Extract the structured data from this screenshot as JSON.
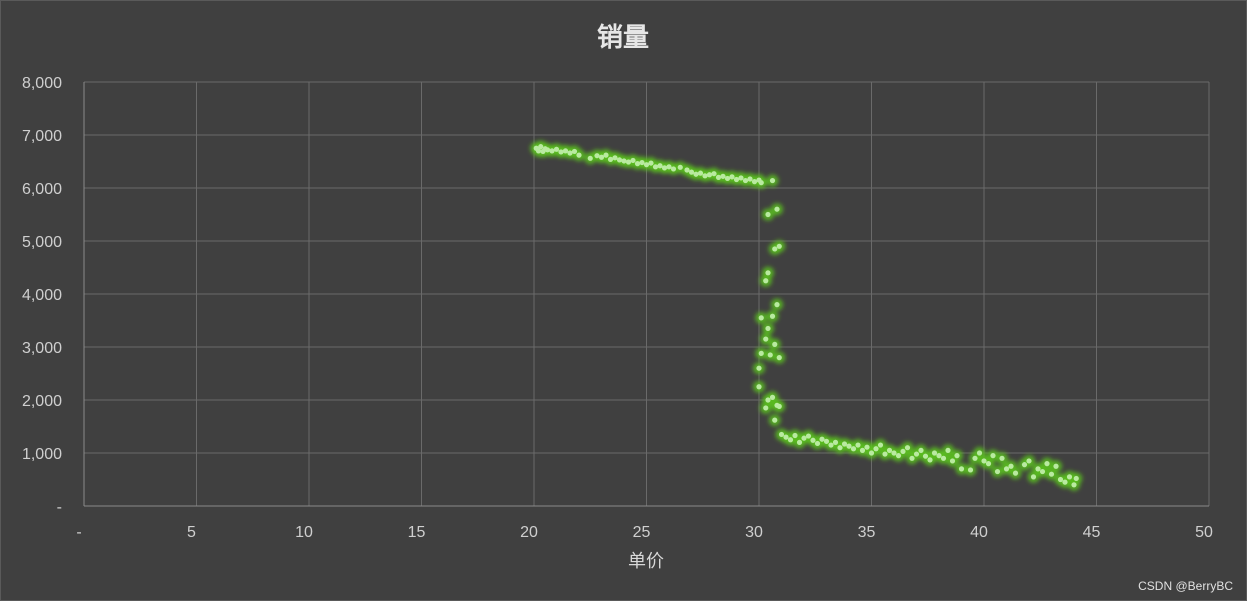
{
  "chart_data": {
    "type": "scatter",
    "title": "销量",
    "xlabel": "单价",
    "ylabel": "",
    "xlim": [
      0,
      50
    ],
    "ylim": [
      0,
      8000
    ],
    "x_ticks": [
      0,
      5,
      10,
      15,
      20,
      25,
      30,
      35,
      40,
      45,
      50
    ],
    "x_tick_labels": [
      "-",
      "5",
      "10",
      "15",
      "20",
      "25",
      "30",
      "35",
      "40",
      "45",
      "50"
    ],
    "y_ticks": [
      0,
      1000,
      2000,
      3000,
      4000,
      5000,
      6000,
      7000,
      8000
    ],
    "y_tick_labels": [
      "-",
      "1,000",
      "2,000",
      "3,000",
      "4,000",
      "5,000",
      "6,000",
      "7,000",
      "8,000"
    ],
    "grid": true,
    "legend": "none",
    "colors": {
      "marker_glow": "#5bbf1e",
      "marker_core": "#b9eaa0",
      "grid": "#6a6a6a",
      "axis": "#8a8a8a",
      "background": "#404040"
    },
    "series": [
      {
        "points": [
          [
            20.1,
            6750
          ],
          [
            20.2,
            6700
          ],
          [
            20.3,
            6780
          ],
          [
            20.4,
            6690
          ],
          [
            20.5,
            6740
          ],
          [
            20.6,
            6720
          ],
          [
            20.8,
            6700
          ],
          [
            21.0,
            6730
          ],
          [
            21.2,
            6680
          ],
          [
            21.4,
            6700
          ],
          [
            21.6,
            6660
          ],
          [
            21.8,
            6690
          ],
          [
            22.0,
            6620
          ],
          [
            22.5,
            6560
          ],
          [
            22.8,
            6610
          ],
          [
            23.0,
            6580
          ],
          [
            23.2,
            6620
          ],
          [
            23.4,
            6540
          ],
          [
            23.6,
            6570
          ],
          [
            23.8,
            6530
          ],
          [
            24.0,
            6510
          ],
          [
            24.2,
            6490
          ],
          [
            24.4,
            6520
          ],
          [
            24.6,
            6460
          ],
          [
            24.8,
            6480
          ],
          [
            25.0,
            6440
          ],
          [
            25.2,
            6470
          ],
          [
            25.4,
            6400
          ],
          [
            25.6,
            6420
          ],
          [
            25.8,
            6380
          ],
          [
            26.0,
            6400
          ],
          [
            26.2,
            6360
          ],
          [
            26.5,
            6390
          ],
          [
            26.8,
            6340
          ],
          [
            27.0,
            6300
          ],
          [
            27.2,
            6260
          ],
          [
            27.4,
            6280
          ],
          [
            27.6,
            6230
          ],
          [
            27.8,
            6250
          ],
          [
            28.0,
            6270
          ],
          [
            28.2,
            6200
          ],
          [
            28.4,
            6220
          ],
          [
            28.6,
            6180
          ],
          [
            28.8,
            6210
          ],
          [
            29.0,
            6160
          ],
          [
            29.2,
            6190
          ],
          [
            29.4,
            6140
          ],
          [
            29.6,
            6170
          ],
          [
            29.8,
            6120
          ],
          [
            30.0,
            6150
          ],
          [
            30.1,
            6100
          ],
          [
            30.6,
            6140
          ],
          [
            30.4,
            5500
          ],
          [
            30.8,
            5600
          ],
          [
            30.7,
            4850
          ],
          [
            30.9,
            4900
          ],
          [
            30.4,
            4400
          ],
          [
            30.3,
            4250
          ],
          [
            30.8,
            3800
          ],
          [
            30.1,
            3550
          ],
          [
            30.6,
            3580
          ],
          [
            30.4,
            3350
          ],
          [
            30.3,
            3150
          ],
          [
            30.7,
            3050
          ],
          [
            30.1,
            2880
          ],
          [
            30.5,
            2850
          ],
          [
            30.9,
            2800
          ],
          [
            30.0,
            2600
          ],
          [
            30.0,
            2250
          ],
          [
            30.6,
            2050
          ],
          [
            30.4,
            2000
          ],
          [
            30.8,
            1900
          ],
          [
            30.9,
            1880
          ],
          [
            30.3,
            1850
          ],
          [
            30.7,
            1620
          ],
          [
            31.0,
            1350
          ],
          [
            31.2,
            1300
          ],
          [
            31.4,
            1250
          ],
          [
            31.6,
            1330
          ],
          [
            31.8,
            1200
          ],
          [
            32.0,
            1280
          ],
          [
            32.2,
            1320
          ],
          [
            32.4,
            1240
          ],
          [
            32.6,
            1180
          ],
          [
            32.8,
            1260
          ],
          [
            33.0,
            1220
          ],
          [
            33.2,
            1150
          ],
          [
            33.4,
            1200
          ],
          [
            33.6,
            1100
          ],
          [
            33.8,
            1170
          ],
          [
            34.0,
            1130
          ],
          [
            34.2,
            1080
          ],
          [
            34.4,
            1150
          ],
          [
            34.6,
            1050
          ],
          [
            34.8,
            1110
          ],
          [
            35.0,
            1000
          ],
          [
            35.2,
            1080
          ],
          [
            35.4,
            1150
          ],
          [
            35.6,
            980
          ],
          [
            35.8,
            1050
          ],
          [
            36.0,
            1000
          ],
          [
            36.2,
            950
          ],
          [
            36.4,
            1030
          ],
          [
            36.6,
            1100
          ],
          [
            36.8,
            900
          ],
          [
            37.0,
            980
          ],
          [
            37.2,
            1050
          ],
          [
            37.4,
            940
          ],
          [
            37.6,
            870
          ],
          [
            37.8,
            1000
          ],
          [
            38.0,
            950
          ],
          [
            38.2,
            900
          ],
          [
            38.4,
            1050
          ],
          [
            38.6,
            850
          ],
          [
            38.8,
            950
          ],
          [
            39.0,
            700
          ],
          [
            39.4,
            680
          ],
          [
            39.6,
            900
          ],
          [
            39.8,
            1000
          ],
          [
            40.0,
            850
          ],
          [
            40.2,
            800
          ],
          [
            40.4,
            950
          ],
          [
            40.6,
            650
          ],
          [
            40.8,
            900
          ],
          [
            41.0,
            700
          ],
          [
            41.2,
            750
          ],
          [
            41.4,
            620
          ],
          [
            41.8,
            780
          ],
          [
            42.0,
            850
          ],
          [
            42.2,
            550
          ],
          [
            42.4,
            700
          ],
          [
            42.6,
            650
          ],
          [
            42.8,
            800
          ],
          [
            43.0,
            600
          ],
          [
            43.2,
            750
          ],
          [
            43.4,
            500
          ],
          [
            43.6,
            450
          ],
          [
            43.8,
            550
          ],
          [
            44.0,
            400
          ],
          [
            44.1,
            520
          ]
        ]
      }
    ],
    "watermark": "CSDN @BerryBC"
  }
}
